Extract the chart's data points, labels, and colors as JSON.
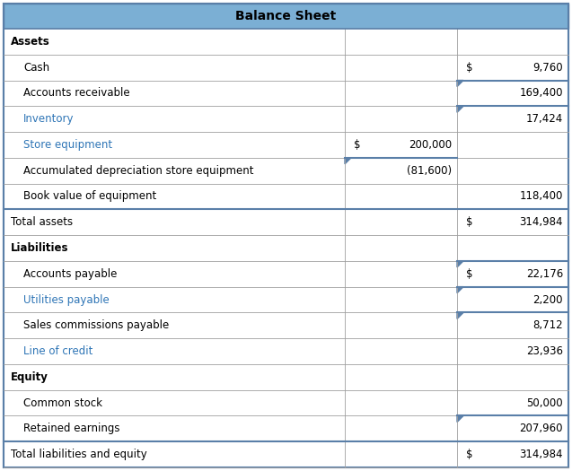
{
  "title": "Balance Sheet",
  "title_bg": "#7bafd4",
  "border_color": "#5a7fa8",
  "border_color_light": "#a0a0a0",
  "text_color_blue": "#2e75b6",
  "figsize": [
    6.37,
    5.25
  ],
  "rows": [
    {
      "label": "Assets",
      "col1": "",
      "col2": "",
      "bold": true,
      "indent": false,
      "label_color": "black",
      "dollar1": false,
      "dollar2": false,
      "top_border": false,
      "col1_border_top": false,
      "col2_border_top": false
    },
    {
      "label": "Cash",
      "col1": "",
      "col2": "9,760",
      "bold": false,
      "indent": true,
      "label_color": "black",
      "dollar1": false,
      "dollar2": true,
      "top_border": false,
      "col1_border_top": false,
      "col2_border_top": false
    },
    {
      "label": "Accounts receivable",
      "col1": "",
      "col2": "169,400",
      "bold": false,
      "indent": true,
      "label_color": "black",
      "dollar1": false,
      "dollar2": false,
      "top_border": false,
      "col1_border_top": false,
      "col2_border_top": true
    },
    {
      "label": "Inventory",
      "col1": "",
      "col2": "17,424",
      "bold": false,
      "indent": true,
      "label_color": "#2e75b6",
      "dollar1": false,
      "dollar2": false,
      "top_border": false,
      "col1_border_top": false,
      "col2_border_top": true
    },
    {
      "label": "Store equipment",
      "col1": "200,000",
      "col2": "",
      "bold": false,
      "indent": true,
      "label_color": "#2e75b6",
      "dollar1": true,
      "dollar2": false,
      "top_border": false,
      "col1_border_top": false,
      "col2_border_top": false
    },
    {
      "label": "Accumulated depreciation store equipment",
      "col1": "(81,600)",
      "col2": "",
      "bold": false,
      "indent": true,
      "label_color": "black",
      "dollar1": false,
      "dollar2": false,
      "top_border": false,
      "col1_border_top": true,
      "col2_border_top": false
    },
    {
      "label": "Book value of equipment",
      "col1": "",
      "col2": "118,400",
      "bold": false,
      "indent": true,
      "label_color": "black",
      "dollar1": false,
      "dollar2": false,
      "top_border": false,
      "col1_border_top": false,
      "col2_border_top": false
    },
    {
      "label": "Total assets",
      "col1": "",
      "col2": "314,984",
      "bold": false,
      "indent": false,
      "label_color": "black",
      "dollar1": false,
      "dollar2": true,
      "top_border": true,
      "col1_border_top": false,
      "col2_border_top": false
    },
    {
      "label": "Liabilities",
      "col1": "",
      "col2": "",
      "bold": true,
      "indent": false,
      "label_color": "black",
      "dollar1": false,
      "dollar2": false,
      "top_border": false,
      "col1_border_top": false,
      "col2_border_top": false
    },
    {
      "label": "Accounts payable",
      "col1": "",
      "col2": "22,176",
      "bold": false,
      "indent": true,
      "label_color": "black",
      "dollar1": false,
      "dollar2": true,
      "top_border": false,
      "col1_border_top": false,
      "col2_border_top": true
    },
    {
      "label": "Utilities payable",
      "col1": "",
      "col2": "2,200",
      "bold": false,
      "indent": true,
      "label_color": "#2e75b6",
      "dollar1": false,
      "dollar2": false,
      "top_border": false,
      "col1_border_top": false,
      "col2_border_top": true
    },
    {
      "label": "Sales commissions payable",
      "col1": "",
      "col2": "8,712",
      "bold": false,
      "indent": true,
      "label_color": "black",
      "dollar1": false,
      "dollar2": false,
      "top_border": false,
      "col1_border_top": false,
      "col2_border_top": true
    },
    {
      "label": "Line of credit",
      "col1": "",
      "col2": "23,936",
      "bold": false,
      "indent": true,
      "label_color": "#2e75b6",
      "dollar1": false,
      "dollar2": false,
      "top_border": false,
      "col1_border_top": false,
      "col2_border_top": false
    },
    {
      "label": "Equity",
      "col1": "",
      "col2": "",
      "bold": true,
      "indent": false,
      "label_color": "black",
      "dollar1": false,
      "dollar2": false,
      "top_border": false,
      "col1_border_top": false,
      "col2_border_top": false
    },
    {
      "label": "Common stock",
      "col1": "",
      "col2": "50,000",
      "bold": false,
      "indent": true,
      "label_color": "black",
      "dollar1": false,
      "dollar2": false,
      "top_border": false,
      "col1_border_top": false,
      "col2_border_top": false
    },
    {
      "label": "Retained earnings",
      "col1": "",
      "col2": "207,960",
      "bold": false,
      "indent": true,
      "label_color": "black",
      "dollar1": false,
      "dollar2": false,
      "top_border": false,
      "col1_border_top": false,
      "col2_border_top": true
    },
    {
      "label": "Total liabilities and equity",
      "col1": "",
      "col2": "314,984",
      "bold": false,
      "indent": false,
      "label_color": "black",
      "dollar1": false,
      "dollar2": true,
      "top_border": true,
      "col1_border_top": false,
      "col2_border_top": false
    }
  ]
}
